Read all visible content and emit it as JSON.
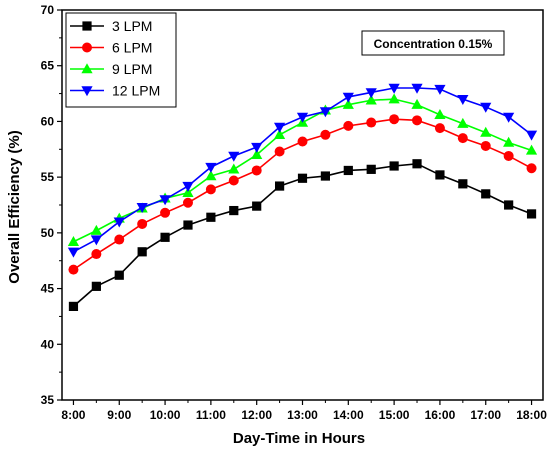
{
  "chart_data": {
    "type": "line",
    "title": "",
    "xlabel": "Day-Time in Hours",
    "ylabel": "Overall Efficiency (%)",
    "annotation": "Concentration 0.15%",
    "ylim": [
      35,
      70
    ],
    "yticks": [
      35,
      40,
      45,
      50,
      55,
      60,
      65,
      70
    ],
    "xlim": [
      7.75,
      18.25
    ],
    "xticks": [
      8,
      9,
      10,
      11,
      12,
      13,
      14,
      15,
      16,
      17,
      18
    ],
    "xtick_labels": [
      "8:00",
      "9:00",
      "10:00",
      "11:00",
      "12:00",
      "13:00",
      "14:00",
      "15:00",
      "16:00",
      "17:00",
      "18:00"
    ],
    "grid": false,
    "legend_position": "top-left",
    "x": [
      8.0,
      8.5,
      9.0,
      9.5,
      10.0,
      10.5,
      11.0,
      11.5,
      12.0,
      12.5,
      13.0,
      13.5,
      14.0,
      14.5,
      15.0,
      15.5,
      16.0,
      16.5,
      17.0,
      17.5,
      18.0
    ],
    "series": [
      {
        "name": "3 LPM",
        "color": "#000000",
        "marker": "square",
        "values": [
          43.4,
          45.2,
          46.2,
          48.3,
          49.6,
          50.7,
          51.4,
          52.0,
          52.4,
          54.2,
          54.9,
          55.1,
          55.6,
          55.7,
          56.0,
          56.2,
          55.2,
          54.4,
          53.5,
          52.5,
          51.7
        ]
      },
      {
        "name": "6 LPM",
        "color": "#ff0000",
        "marker": "circle",
        "values": [
          46.7,
          48.1,
          49.4,
          50.8,
          51.8,
          52.7,
          53.9,
          54.7,
          55.6,
          57.3,
          58.2,
          58.8,
          59.6,
          59.9,
          60.2,
          60.1,
          59.4,
          58.5,
          57.8,
          56.9,
          55.8
        ]
      },
      {
        "name": "9 LPM",
        "color": "#00ff00",
        "marker": "triangle-up",
        "values": [
          49.2,
          50.2,
          51.3,
          52.2,
          53.1,
          53.6,
          55.1,
          55.7,
          57.0,
          58.8,
          59.9,
          61.0,
          61.5,
          61.9,
          62.0,
          61.5,
          60.6,
          59.8,
          59.0,
          58.1,
          57.4
        ]
      },
      {
        "name": "12 LPM",
        "color": "#0000ff",
        "marker": "triangle-down",
        "values": [
          48.3,
          49.4,
          51.0,
          52.3,
          53.0,
          54.2,
          55.9,
          56.9,
          57.7,
          59.5,
          60.4,
          60.9,
          62.2,
          62.6,
          63.0,
          63.0,
          62.9,
          62.0,
          61.3,
          60.4,
          58.8
        ]
      }
    ]
  }
}
